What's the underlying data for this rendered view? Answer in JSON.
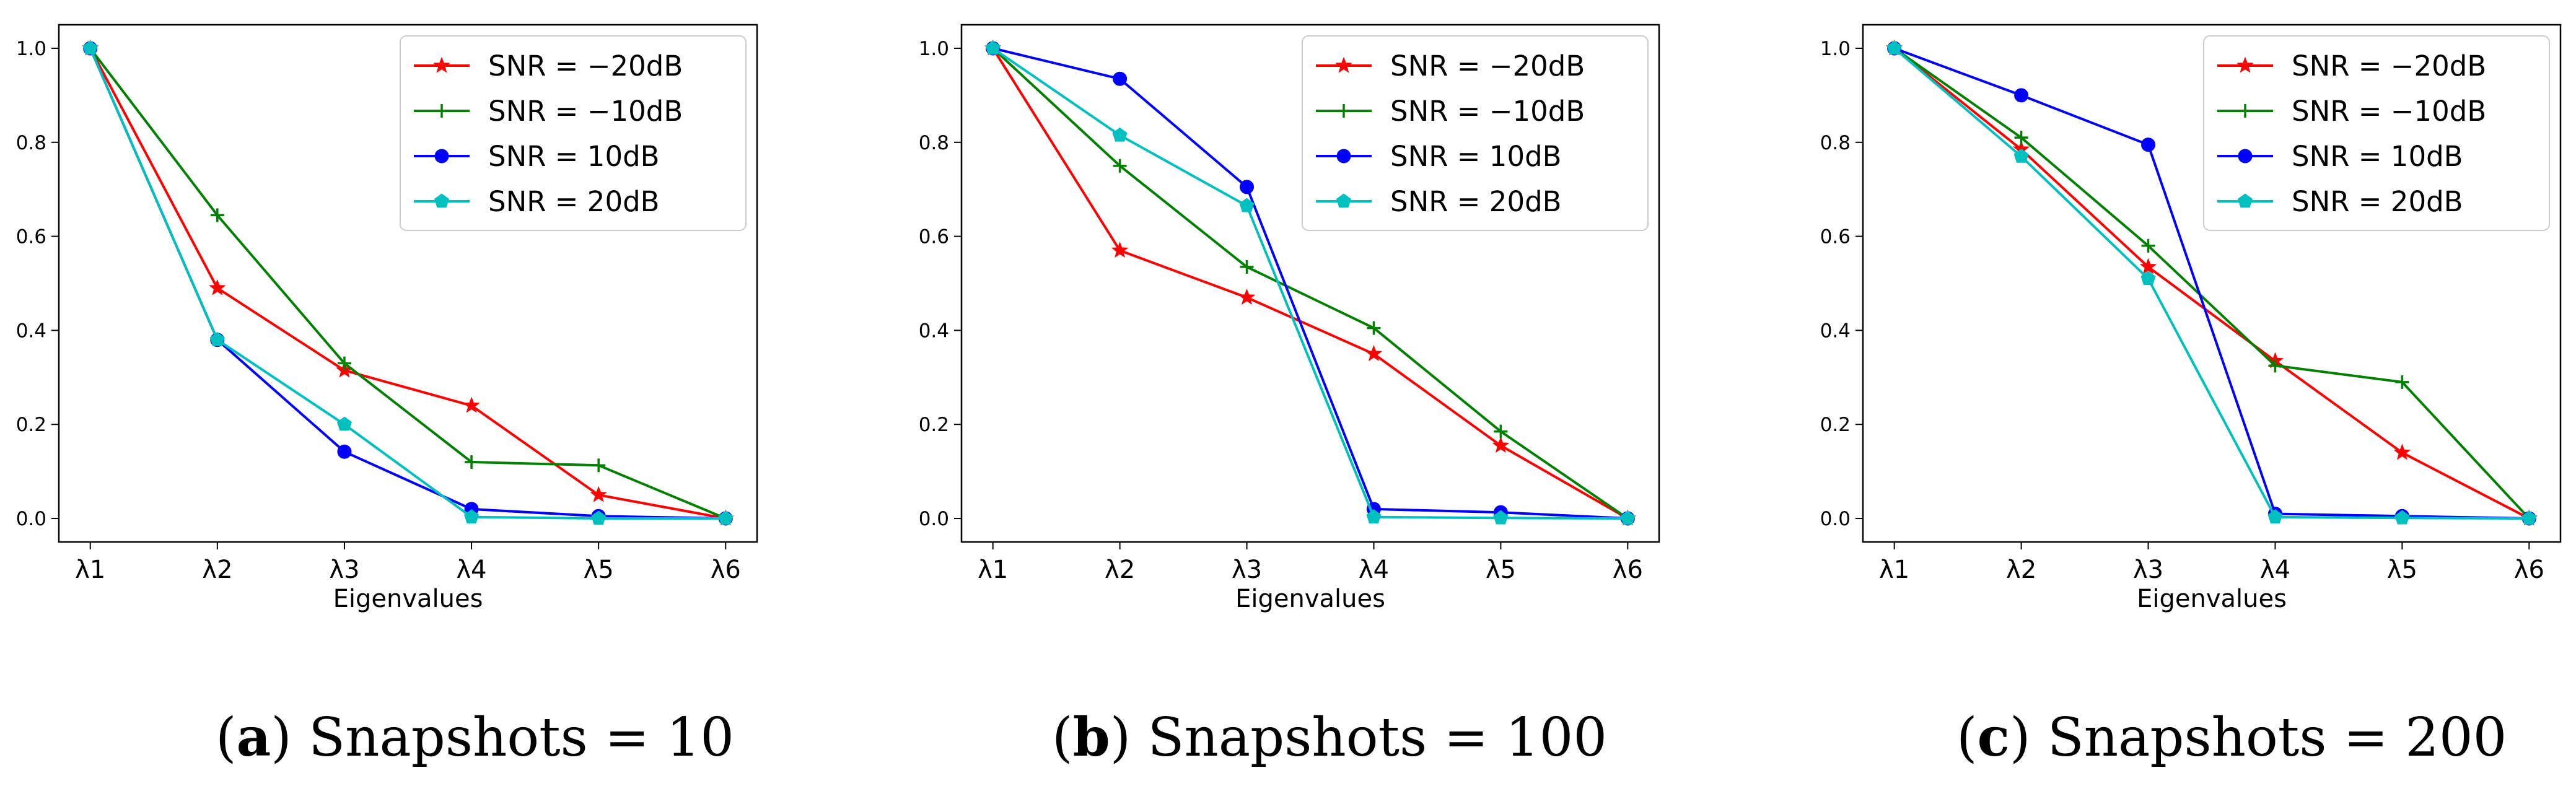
{
  "chart_data": [
    {
      "type": "line",
      "panel_label": "a",
      "caption": "Snapshots = 10",
      "title": "",
      "xlabel": "Eigenvalues",
      "ylabel": "",
      "categories": [
        "λ1",
        "λ2",
        "λ3",
        "λ4",
        "λ5",
        "λ6"
      ],
      "ylim": [
        -0.05,
        1.05
      ],
      "yticks": [
        "0.0",
        "0.2",
        "0.4",
        "0.6",
        "0.8",
        "1.0"
      ],
      "legend_position": "top-right",
      "series": [
        {
          "name": "SNR = −20dB",
          "color": "#ff0000",
          "marker": "star",
          "values": [
            1.0,
            0.49,
            0.315,
            0.24,
            0.05,
            0.0
          ]
        },
        {
          "name": "SNR = −10dB",
          "color": "#008000",
          "marker": "plus",
          "values": [
            1.0,
            0.645,
            0.33,
            0.12,
            0.113,
            0.0
          ]
        },
        {
          "name": "SNR = 10dB",
          "color": "#0000ff",
          "marker": "circle",
          "values": [
            1.0,
            0.38,
            0.142,
            0.02,
            0.005,
            0.0
          ]
        },
        {
          "name": "SNR = 20dB",
          "color": "#00bfbf",
          "marker": "pentagon",
          "values": [
            1.0,
            0.38,
            0.2,
            0.003,
            0.0,
            0.0
          ]
        }
      ]
    },
    {
      "type": "line",
      "panel_label": "b",
      "caption": "Snapshots = 100",
      "title": "",
      "xlabel": "Eigenvalues",
      "ylabel": "",
      "categories": [
        "λ1",
        "λ2",
        "λ3",
        "λ4",
        "λ5",
        "λ6"
      ],
      "ylim": [
        -0.05,
        1.05
      ],
      "yticks": [
        "0.0",
        "0.2",
        "0.4",
        "0.6",
        "0.8",
        "1.0"
      ],
      "legend_position": "top-right",
      "series": [
        {
          "name": "SNR = −20dB",
          "color": "#ff0000",
          "marker": "star",
          "values": [
            1.0,
            0.57,
            0.47,
            0.35,
            0.155,
            0.0
          ]
        },
        {
          "name": "SNR = −10dB",
          "color": "#008000",
          "marker": "plus",
          "values": [
            1.0,
            0.75,
            0.535,
            0.405,
            0.185,
            0.0
          ]
        },
        {
          "name": "SNR = 10dB",
          "color": "#0000ff",
          "marker": "circle",
          "values": [
            1.0,
            0.935,
            0.705,
            0.02,
            0.013,
            0.0
          ]
        },
        {
          "name": "SNR = 20dB",
          "color": "#00bfbf",
          "marker": "pentagon",
          "values": [
            1.0,
            0.815,
            0.665,
            0.003,
            0.001,
            0.0
          ]
        }
      ]
    },
    {
      "type": "line",
      "panel_label": "c",
      "caption": "Snapshots = 200",
      "title": "",
      "xlabel": "Eigenvalues",
      "ylabel": "",
      "categories": [
        "λ1",
        "λ2",
        "λ3",
        "λ4",
        "λ5",
        "λ6"
      ],
      "ylim": [
        -0.05,
        1.05
      ],
      "yticks": [
        "0.0",
        "0.2",
        "0.4",
        "0.6",
        "0.8",
        "1.0"
      ],
      "legend_position": "top-right",
      "series": [
        {
          "name": "SNR = −20dB",
          "color": "#ff0000",
          "marker": "star",
          "values": [
            1.0,
            0.785,
            0.535,
            0.335,
            0.14,
            0.0
          ]
        },
        {
          "name": "SNR = −10dB",
          "color": "#008000",
          "marker": "plus",
          "values": [
            1.0,
            0.81,
            0.58,
            0.325,
            0.29,
            0.0
          ]
        },
        {
          "name": "SNR = 10dB",
          "color": "#0000ff",
          "marker": "circle",
          "values": [
            1.0,
            0.9,
            0.795,
            0.01,
            0.005,
            0.0
          ]
        },
        {
          "name": "SNR = 20dB",
          "color": "#00bfbf",
          "marker": "pentagon",
          "values": [
            1.0,
            0.77,
            0.51,
            0.003,
            0.001,
            0.0
          ]
        }
      ]
    }
  ]
}
